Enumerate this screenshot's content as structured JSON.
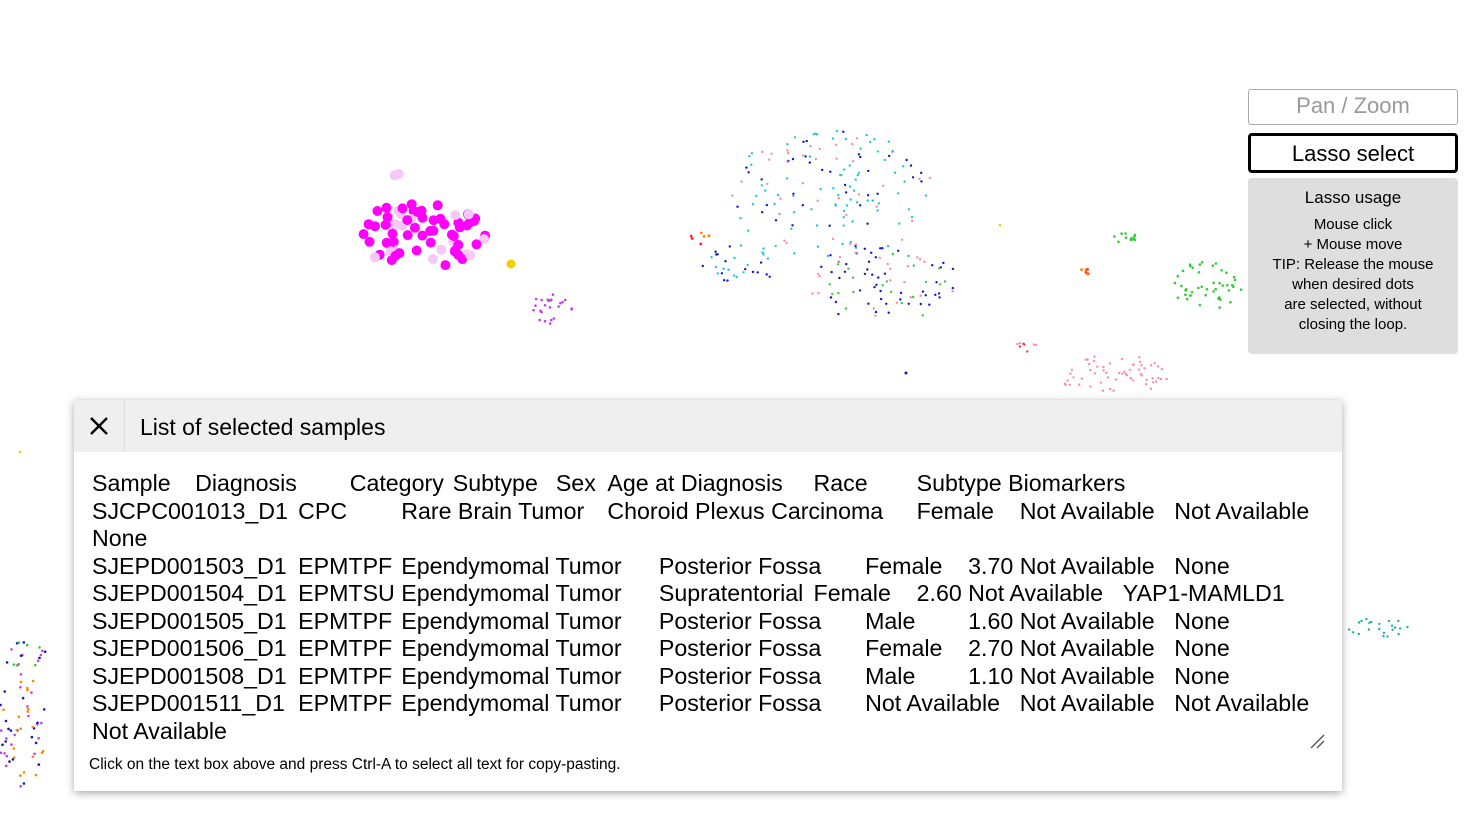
{
  "toolbar": {
    "pan_zoom_label": "Pan / Zoom",
    "lasso_label": "Lasso select",
    "active_mode": "lasso"
  },
  "lasso_help": {
    "title": "Lasso usage",
    "lines": [
      "Mouse click",
      "+ Mouse move",
      "TIP: Release the mouse",
      "when desired dots",
      "are selected, without",
      "closing the loop."
    ]
  },
  "panel": {
    "title": "List of selected samples",
    "close_icon": "close-icon",
    "hint": "Click on the text box above and press Ctrl-A to select all text for copy-pasting.",
    "columns": [
      "Sample",
      "Diagnosis",
      "Category",
      "Subtype",
      "Sex",
      "Age at Diagnosis",
      "Race",
      "Subtype Biomarkers"
    ],
    "rows": [
      [
        "SJCPC001013_D1",
        "CPC",
        "Rare Brain Tumor",
        "Choroid Plexus Carcinoma",
        "Female",
        "Not Available",
        "Not Available",
        "None"
      ],
      [
        "SJEPD001503_D1",
        "EPMTPF",
        "Ependymomal Tumor",
        "Posterior Fossa",
        "Female",
        "3.70",
        "Not Available",
        "None"
      ],
      [
        "SJEPD001504_D1",
        "EPMTSU",
        "Ependymomal Tumor",
        "Supratentorial",
        "Female",
        "2.60",
        "Not Available",
        "YAP1-MAMLD1"
      ],
      [
        "SJEPD001505_D1",
        "EPMTPF",
        "Ependymomal Tumor",
        "Posterior Fossa",
        "Male",
        "1.60",
        "Not Available",
        "None"
      ],
      [
        "SJEPD001506_D1",
        "EPMTPF",
        "Ependymomal Tumor",
        "Posterior Fossa",
        "Female",
        "2.70",
        "Not Available",
        "None"
      ],
      [
        "SJEPD001508_D1",
        "EPMTPF",
        "Ependymomal Tumor",
        "Posterior Fossa",
        "Male",
        "1.10",
        "Not Available",
        "None"
      ],
      [
        "SJEPD001511_D1",
        "EPMTPF",
        "Ependymomal Tumor",
        "Posterior Fossa",
        "Not Available",
        "Not Available",
        "Not Available",
        "Not Available"
      ]
    ]
  },
  "colors": {
    "selected_dots": "#ff00ff",
    "selected_faded": "#f7c8f7",
    "highlight_dot": "#f5d000",
    "cyan_cluster": "#22c6d6",
    "blue_cluster": "#1414c8",
    "pink_cluster": "#ff88aa",
    "green_cluster": "#33cc33",
    "purple_cluster": "#c040e0",
    "teal_cluster": "#20b0a0",
    "orange_cluster": "#ff8800"
  }
}
